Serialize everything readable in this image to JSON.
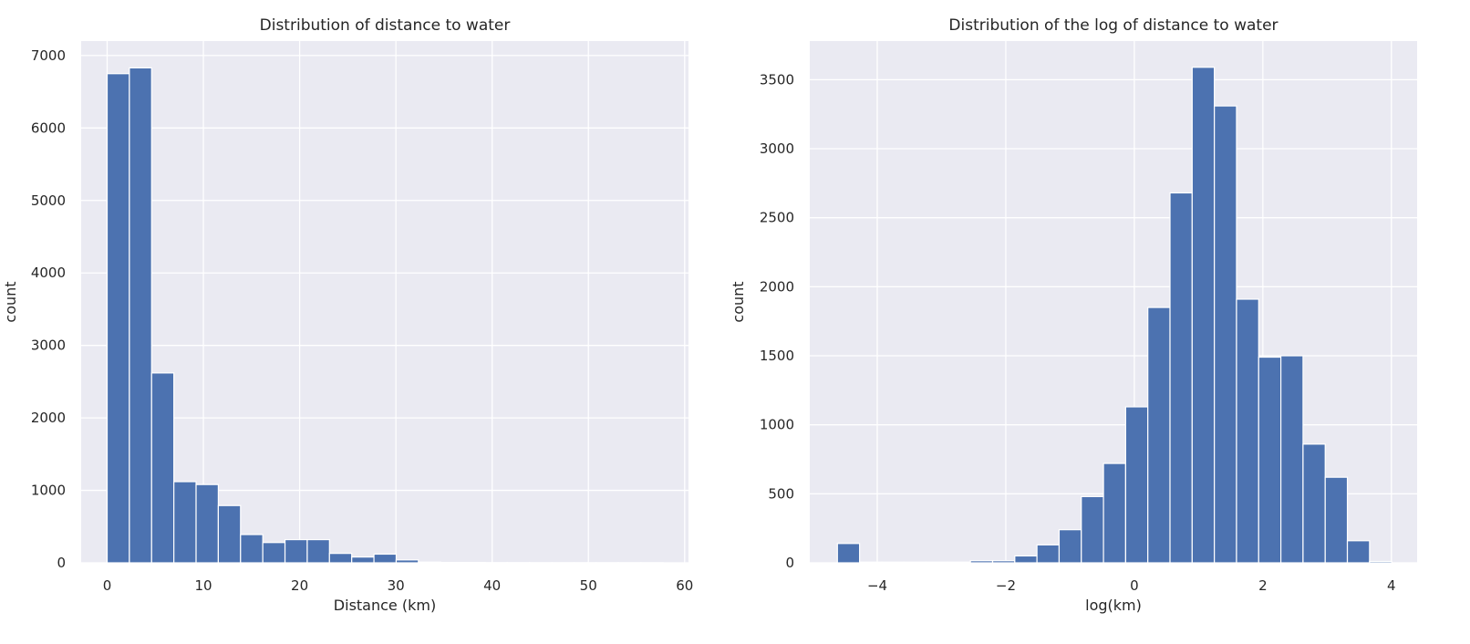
{
  "chart_data": [
    {
      "type": "bar",
      "title": "Distribution of distance to water",
      "xlabel": "Distance (km)",
      "ylabel": "count",
      "xlim": [
        -2.7,
        60.4
      ],
      "ylim": [
        0,
        7200
      ],
      "xticks": [
        "0",
        "10",
        "20",
        "30",
        "40",
        "50",
        "60"
      ],
      "yticks": [
        "0",
        "1000",
        "2000",
        "3000",
        "4000",
        "5000",
        "6000",
        "7000"
      ],
      "bin_edges": [
        0,
        2.31,
        4.62,
        6.93,
        9.24,
        11.55,
        13.86,
        16.17,
        18.48,
        20.79,
        23.1,
        25.41,
        27.72,
        30.03,
        32.34,
        34.65,
        36.96,
        39.27,
        41.58,
        43.89,
        46.2,
        48.51,
        50.82,
        53.13,
        55.44,
        57.75
      ],
      "values": [
        6750,
        6830,
        2620,
        1120,
        1080,
        790,
        390,
        280,
        320,
        320,
        130,
        80,
        120,
        40,
        10,
        5,
        5,
        3,
        3,
        2,
        2,
        2,
        2,
        2,
        2
      ],
      "grid": true
    },
    {
      "type": "bar",
      "title": "Distribution of the log  of distance to water",
      "xlabel": "log(km)",
      "ylabel": "count",
      "xlim": [
        -5.05,
        4.4
      ],
      "ylim": [
        0,
        3780
      ],
      "xticks": [
        "−4",
        "−2",
        "0",
        "2",
        "4"
      ],
      "yticks": [
        "0",
        "500",
        "1000",
        "1500",
        "2000",
        "2500",
        "3000",
        "3500"
      ],
      "bin_edges": [
        -4.62,
        -4.275,
        -3.93,
        -3.585,
        -3.24,
        -2.895,
        -2.55,
        -2.205,
        -1.86,
        -1.515,
        -1.17,
        -0.825,
        -0.48,
        -0.135,
        0.21,
        0.555,
        0.9,
        1.245,
        1.59,
        1.935,
        2.28,
        2.625,
        2.97,
        3.315,
        3.66,
        4.005
      ],
      "values": [
        140,
        5,
        5,
        5,
        5,
        5,
        15,
        15,
        50,
        130,
        240,
        480,
        720,
        1130,
        1850,
        2680,
        3590,
        3310,
        1910,
        1490,
        1500,
        860,
        620,
        160,
        10
      ],
      "grid": true
    }
  ]
}
